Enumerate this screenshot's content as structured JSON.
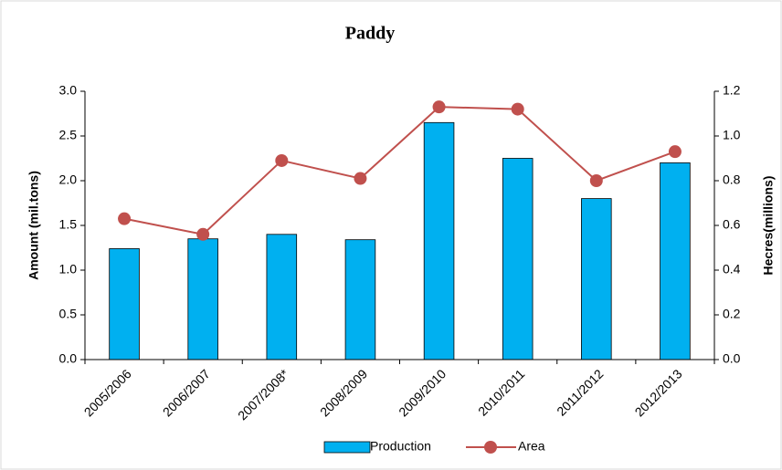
{
  "chart_data": {
    "type": "bar-line",
    "title": "Paddy",
    "categories": [
      "2005/2006",
      "2006/2007",
      "2007/2008*",
      "2008/2009",
      "2009/2010",
      "2010/2011",
      "2011/2012",
      "2012/2013"
    ],
    "series": [
      {
        "name": "Production",
        "type": "bar",
        "color": "#00b0f0",
        "values": [
          1.24,
          1.35,
          1.4,
          1.34,
          2.65,
          2.25,
          1.8,
          2.2
        ]
      },
      {
        "name": "Area",
        "type": "line",
        "color": "#c0504d",
        "axis": "y2",
        "values": [
          0.63,
          0.56,
          0.89,
          0.81,
          1.13,
          1.12,
          0.8,
          0.93
        ]
      }
    ],
    "ylabel": "Amount (mil.tons)",
    "y2label": "Hecres(millions)",
    "ylim": [
      0,
      3
    ],
    "yticks": [
      {
        "value": 0,
        "label": "0.0"
      },
      0.5,
      {
        "value": 1,
        "label": "1.0"
      },
      1.5,
      {
        "value": 2,
        "label": "2.0"
      },
      2.5,
      {
        "value": 3,
        "label": "3.0"
      }
    ],
    "y2lim": [
      0,
      1.2
    ],
    "y2ticks": [
      {
        "value": 0,
        "label": "0.0"
      },
      0.2,
      0.4,
      0.6,
      0.8,
      {
        "value": 1,
        "label": "1.0"
      },
      1.2
    ],
    "legend": "bottom"
  }
}
